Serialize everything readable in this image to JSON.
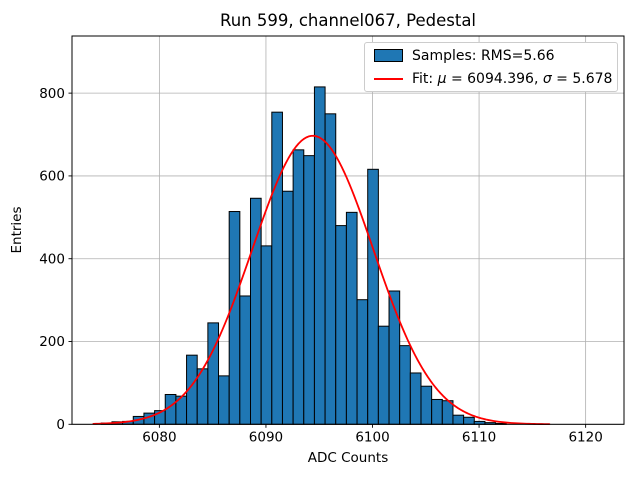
{
  "chart_data": {
    "type": "bar",
    "subtype": "histogram",
    "title": "Run 599, channel067, Pedestal",
    "xlabel": "ADC Counts",
    "ylabel": "Entries",
    "xlim": [
      6071.8,
      6123.6
    ],
    "ylim": [
      0,
      938
    ],
    "x_ticks": [
      6080,
      6090,
      6100,
      6110,
      6120
    ],
    "x_tick_labels": [
      "6080",
      "6090",
      "6100",
      "6110",
      "6120"
    ],
    "y_ticks": [
      0,
      200,
      400,
      600,
      800
    ],
    "y_tick_labels": [
      "0",
      "200",
      "400",
      "600",
      "800"
    ],
    "grid": true,
    "grid_color": "#b0b0b0",
    "axes_color": "#000000",
    "background_color": "#ffffff",
    "histogram": {
      "bin_start": 6074.55,
      "bin_width": 1.0,
      "counts": [
        3,
        6,
        7,
        19,
        27,
        33,
        72,
        68,
        167,
        134,
        245,
        117,
        514,
        310,
        546,
        431,
        754,
        563,
        663,
        649,
        815,
        750,
        480,
        512,
        301,
        616,
        237,
        322,
        190,
        124,
        92,
        60,
        57,
        22,
        17,
        7,
        4,
        2
      ],
      "color": "#1f77b4",
      "edge_color": "#000000"
    },
    "fit": {
      "type": "gaussian",
      "mu": 6094.396,
      "sigma": 5.678,
      "amplitude": 697,
      "x_start": 6073.8,
      "x_end": 6116.6,
      "color": "#ff0000"
    },
    "legend": {
      "position": "upper right",
      "entries": [
        {
          "type": "patch",
          "label": "Samples: RMS=5.66",
          "rms": 5.66
        },
        {
          "type": "line",
          "label": "Fit: μ = 6094.396, σ = 5.678",
          "parts": {
            "prefix": "Fit: ",
            "mu_symbol": "μ",
            "mid": " = 6094.396, ",
            "sigma_symbol": "σ",
            "suffix": " = 5.678"
          }
        }
      ]
    }
  }
}
